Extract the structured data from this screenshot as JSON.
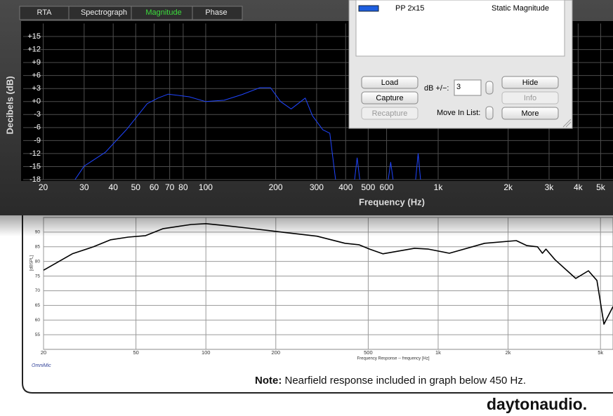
{
  "chart_data": [
    {
      "type": "line",
      "xlabel": "Frequency (Hz)",
      "ylabel": "Decibels (dB)",
      "xscale": "log",
      "grid": true,
      "color": "#1f45ff",
      "xlim": [
        16.4,
        5650
      ],
      "ylim": [
        -18,
        18
      ],
      "xticks": [
        20,
        30,
        40,
        50,
        60,
        70,
        80,
        100,
        200,
        300,
        400,
        500,
        600,
        {
          "value": 1000,
          "label": "1k"
        },
        {
          "value": 2000,
          "label": "2k"
        },
        {
          "value": 3000,
          "label": "3k"
        },
        {
          "value": 4000,
          "label": "4k"
        },
        {
          "value": 5000,
          "label": "5k"
        }
      ],
      "yticks": [
        {
          "value": 15,
          "label": "+15"
        },
        {
          "value": 12,
          "label": "+12"
        },
        {
          "value": 9,
          "label": "+9"
        },
        {
          "value": 6,
          "label": "+6"
        },
        {
          "value": 3,
          "label": "+3"
        },
        {
          "value": 0,
          "label": "+0"
        },
        -3,
        -6,
        -9,
        -12,
        -15,
        -18
      ],
      "x": [
        27.4,
        30,
        37,
        45.6,
        56,
        62.3,
        69,
        85,
        100,
        120,
        143,
        171,
        190,
        210,
        233,
        268,
        288,
        319,
        342,
        362,
        400,
        437,
        448,
        460,
        540,
        610,
        625,
        640,
        720,
        800,
        820,
        840
      ],
      "values": [
        -18,
        -14.9,
        -11.7,
        -6.5,
        -0.5,
        0.8,
        1.7,
        1.1,
        0,
        0.3,
        1.6,
        3.2,
        3.2,
        0,
        -1.7,
        0.8,
        -3.3,
        -6.5,
        -7.3,
        -18,
        null,
        -18,
        -13,
        -18,
        null,
        -18,
        -14,
        -18,
        null,
        -18,
        -12,
        -18
      ]
    },
    {
      "type": "line",
      "xlabel": "Frequency Response -- frequency [Hz]",
      "ylabel": "[dBSPL]",
      "source": "OmniMic",
      "xscale": "log",
      "grid": true,
      "color": "#000000",
      "xlim": [
        20,
        5660
      ],
      "ylim": [
        50,
        95
      ],
      "xticks": [
        20,
        50,
        100,
        200,
        500,
        {
          "value": 1000,
          "label": "1k"
        },
        {
          "value": 2000,
          "label": "2k"
        },
        {
          "value": 5000,
          "label": "5k"
        }
      ],
      "yticks": [
        90,
        85,
        80,
        75,
        70,
        65,
        60,
        55
      ],
      "x": [
        20,
        26.6,
        32.8,
        38.9,
        46.3,
        55,
        65.5,
        86.5,
        100,
        122,
        150,
        213,
        301,
        397,
        456,
        507,
        578,
        791,
        908,
        1118,
        1586,
        2171,
        2410,
        2678,
        2812,
        2912,
        3186,
        3912,
        4437,
        4826,
        5174,
        5660
      ],
      "values": [
        77,
        82.6,
        85,
        87.4,
        88.3,
        88.8,
        91.2,
        92.6,
        92.9,
        92.2,
        91.4,
        90,
        88.6,
        86.2,
        85.7,
        84.2,
        82.6,
        84.5,
        84.2,
        82.8,
        86.2,
        87.1,
        85.4,
        85,
        82.8,
        84.2,
        80.6,
        74.2,
        76.8,
        73.5,
        58.6,
        64.6
      ]
    }
  ],
  "window": {
    "tabs": [
      "RTA",
      "Spectrograph",
      "Magnitude",
      "Phase"
    ],
    "list": {
      "name": "PP 2x15",
      "kind": "Static Magnitude"
    },
    "buttons": [
      "Load",
      "Capture",
      "Recapture",
      "Hide",
      "Info",
      "More"
    ],
    "db_label": "dB +/−:",
    "db_value": "3",
    "move_label": "Move In List:"
  },
  "note": {
    "bold": "Note:",
    "text": " Nearfield response included in graph below 450 Hz."
  },
  "logo": "daytonaudio."
}
